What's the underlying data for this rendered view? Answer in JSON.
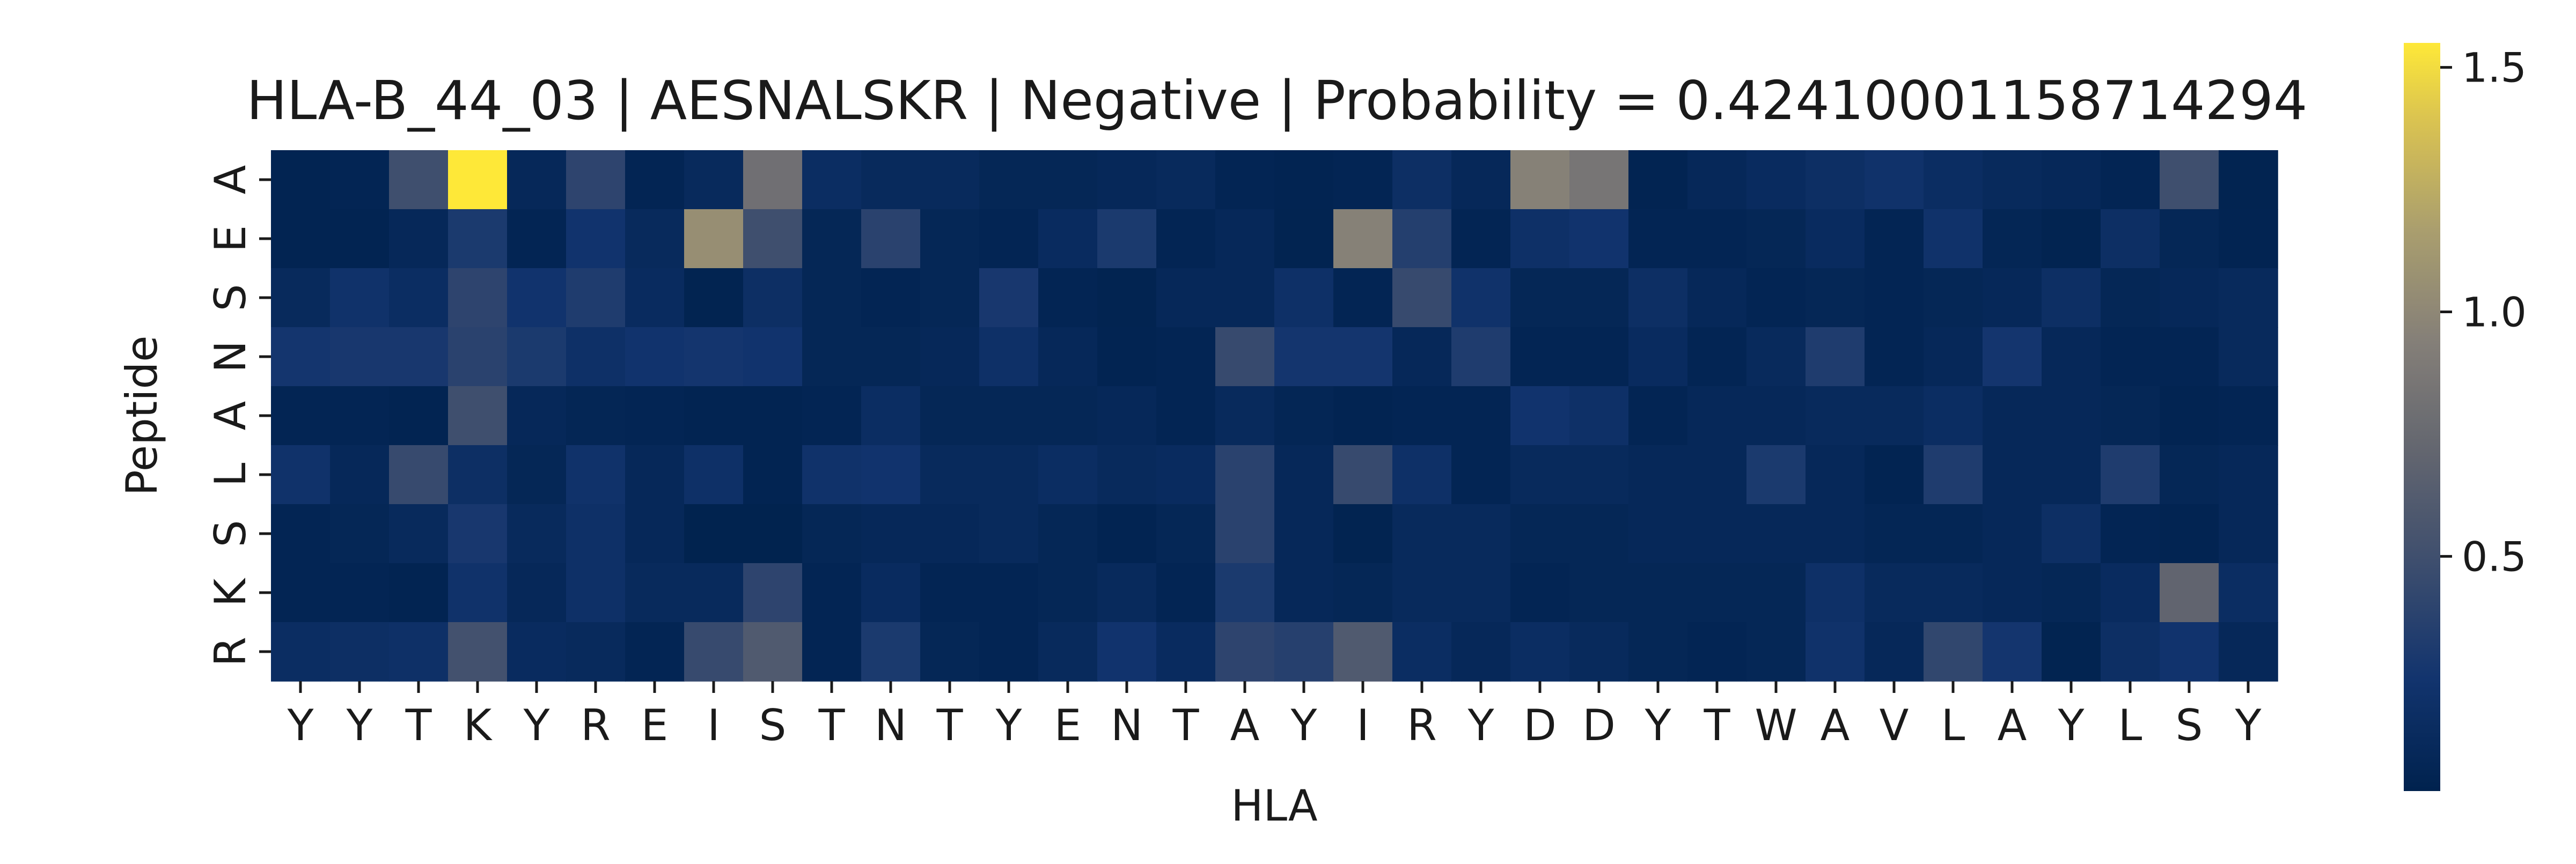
{
  "chart_data": {
    "type": "heatmap",
    "title": "HLA-B_44_03 | AESNALSKR | Negative | Probability = 0.42410001158714294",
    "xlabel": "HLA",
    "ylabel": "Peptide",
    "x_ticks": [
      "Y",
      "Y",
      "T",
      "K",
      "Y",
      "R",
      "E",
      "I",
      "S",
      "T",
      "N",
      "T",
      "Y",
      "E",
      "N",
      "T",
      "A",
      "Y",
      "I",
      "R",
      "Y",
      "D",
      "D",
      "Y",
      "T",
      "W",
      "A",
      "V",
      "L",
      "A",
      "Y",
      "L",
      "S",
      "Y"
    ],
    "y_ticks": [
      "A",
      "E",
      "S",
      "N",
      "A",
      "L",
      "S",
      "K",
      "R"
    ],
    "colormap": "cividis",
    "color_range": [
      0.02,
      1.55
    ],
    "colorbar_ticks": [
      {
        "value": 0.5,
        "label": "0.5"
      },
      {
        "value": 1.0,
        "label": "1.0"
      },
      {
        "value": 1.5,
        "label": "1.5"
      }
    ],
    "values": [
      [
        0.05,
        0.06,
        0.5,
        1.55,
        0.1,
        0.4,
        0.06,
        0.12,
        0.8,
        0.16,
        0.12,
        0.12,
        0.08,
        0.08,
        0.1,
        0.12,
        0.06,
        0.05,
        0.06,
        0.18,
        0.1,
        0.95,
        0.85,
        0.05,
        0.1,
        0.14,
        0.18,
        0.22,
        0.16,
        0.12,
        0.1,
        0.06,
        0.5,
        0.04
      ],
      [
        0.05,
        0.05,
        0.1,
        0.3,
        0.06,
        0.24,
        0.12,
        1.05,
        0.5,
        0.08,
        0.38,
        0.08,
        0.06,
        0.14,
        0.3,
        0.06,
        0.1,
        0.04,
        0.95,
        0.35,
        0.06,
        0.2,
        0.24,
        0.06,
        0.06,
        0.08,
        0.14,
        0.06,
        0.22,
        0.07,
        0.04,
        0.18,
        0.08,
        0.05
      ],
      [
        0.12,
        0.22,
        0.16,
        0.4,
        0.24,
        0.32,
        0.14,
        0.04,
        0.18,
        0.08,
        0.06,
        0.08,
        0.28,
        0.06,
        0.04,
        0.1,
        0.1,
        0.2,
        0.06,
        0.45,
        0.22,
        0.08,
        0.08,
        0.18,
        0.1,
        0.06,
        0.08,
        0.06,
        0.08,
        0.1,
        0.18,
        0.08,
        0.1,
        0.12
      ],
      [
        0.26,
        0.28,
        0.28,
        0.38,
        0.3,
        0.2,
        0.24,
        0.26,
        0.24,
        0.08,
        0.08,
        0.1,
        0.2,
        0.1,
        0.05,
        0.06,
        0.45,
        0.26,
        0.26,
        0.1,
        0.32,
        0.06,
        0.06,
        0.14,
        0.06,
        0.12,
        0.32,
        0.06,
        0.1,
        0.26,
        0.1,
        0.06,
        0.06,
        0.12
      ],
      [
        0.06,
        0.06,
        0.05,
        0.5,
        0.1,
        0.07,
        0.06,
        0.05,
        0.05,
        0.06,
        0.16,
        0.08,
        0.08,
        0.08,
        0.1,
        0.06,
        0.12,
        0.07,
        0.05,
        0.06,
        0.06,
        0.24,
        0.2,
        0.06,
        0.1,
        0.1,
        0.12,
        0.12,
        0.16,
        0.1,
        0.1,
        0.08,
        0.05,
        0.06
      ],
      [
        0.22,
        0.1,
        0.45,
        0.18,
        0.08,
        0.22,
        0.1,
        0.2,
        0.05,
        0.22,
        0.24,
        0.12,
        0.12,
        0.16,
        0.12,
        0.14,
        0.38,
        0.1,
        0.45,
        0.2,
        0.06,
        0.12,
        0.12,
        0.1,
        0.1,
        0.3,
        0.1,
        0.05,
        0.32,
        0.1,
        0.1,
        0.32,
        0.08,
        0.1
      ],
      [
        0.06,
        0.08,
        0.12,
        0.28,
        0.12,
        0.2,
        0.1,
        0.03,
        0.03,
        0.08,
        0.1,
        0.1,
        0.12,
        0.08,
        0.05,
        0.08,
        0.38,
        0.1,
        0.04,
        0.12,
        0.12,
        0.08,
        0.08,
        0.1,
        0.1,
        0.1,
        0.1,
        0.07,
        0.07,
        0.1,
        0.18,
        0.06,
        0.05,
        0.1
      ],
      [
        0.06,
        0.06,
        0.05,
        0.22,
        0.1,
        0.2,
        0.12,
        0.12,
        0.4,
        0.06,
        0.14,
        0.06,
        0.06,
        0.08,
        0.12,
        0.06,
        0.3,
        0.1,
        0.08,
        0.12,
        0.12,
        0.06,
        0.08,
        0.08,
        0.08,
        0.08,
        0.2,
        0.12,
        0.12,
        0.1,
        0.08,
        0.14,
        0.7,
        0.16
      ],
      [
        0.16,
        0.18,
        0.2,
        0.52,
        0.14,
        0.12,
        0.06,
        0.45,
        0.6,
        0.06,
        0.3,
        0.08,
        0.06,
        0.12,
        0.24,
        0.14,
        0.4,
        0.36,
        0.6,
        0.16,
        0.1,
        0.16,
        0.12,
        0.08,
        0.06,
        0.08,
        0.22,
        0.1,
        0.42,
        0.26,
        0.04,
        0.18,
        0.24,
        0.1
      ]
    ]
  }
}
